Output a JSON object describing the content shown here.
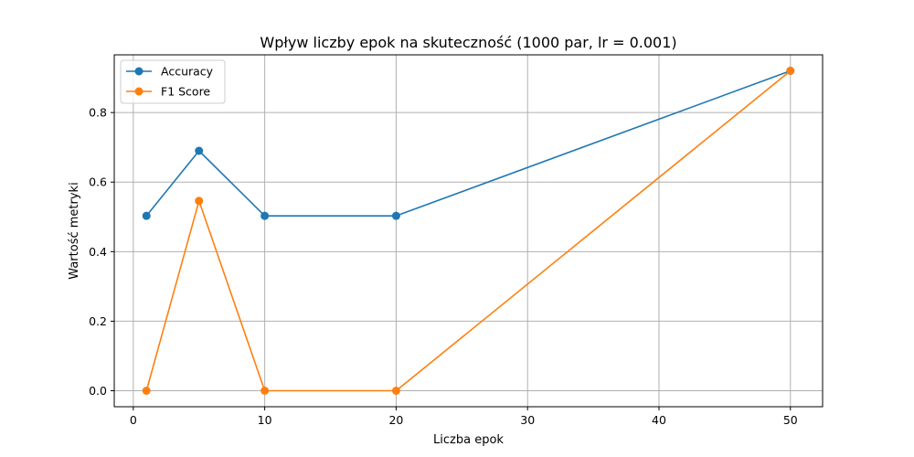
{
  "chart_data": {
    "type": "line",
    "title": "Wpływ liczby epok na skuteczność (1000 par, lr = 0.001)",
    "xlabel": "Liczba epok",
    "ylabel": "Wartość metryki",
    "x": [
      1,
      5,
      10,
      20,
      50
    ],
    "xlim": [
      -1.45,
      52.45
    ],
    "ylim": [
      -0.046,
      0.966
    ],
    "xticks": [
      0,
      10,
      20,
      30,
      40,
      50
    ],
    "xtick_labels": [
      "0",
      "10",
      "20",
      "30",
      "40",
      "50"
    ],
    "yticks": [
      0.0,
      0.2,
      0.4,
      0.6,
      0.8
    ],
    "ytick_labels": [
      "0.0",
      "0.2",
      "0.4",
      "0.6",
      "0.8"
    ],
    "grid": true,
    "legend_position": "upper-left",
    "series": [
      {
        "name": "Accuracy",
        "color": "#1f77b4",
        "marker": "circle",
        "values": [
          0.503,
          0.69,
          0.503,
          0.503,
          0.92
        ]
      },
      {
        "name": "F1 Score",
        "color": "#ff7f0e",
        "marker": "circle",
        "values": [
          0.0,
          0.546,
          0.0,
          0.0,
          0.92
        ]
      }
    ]
  }
}
